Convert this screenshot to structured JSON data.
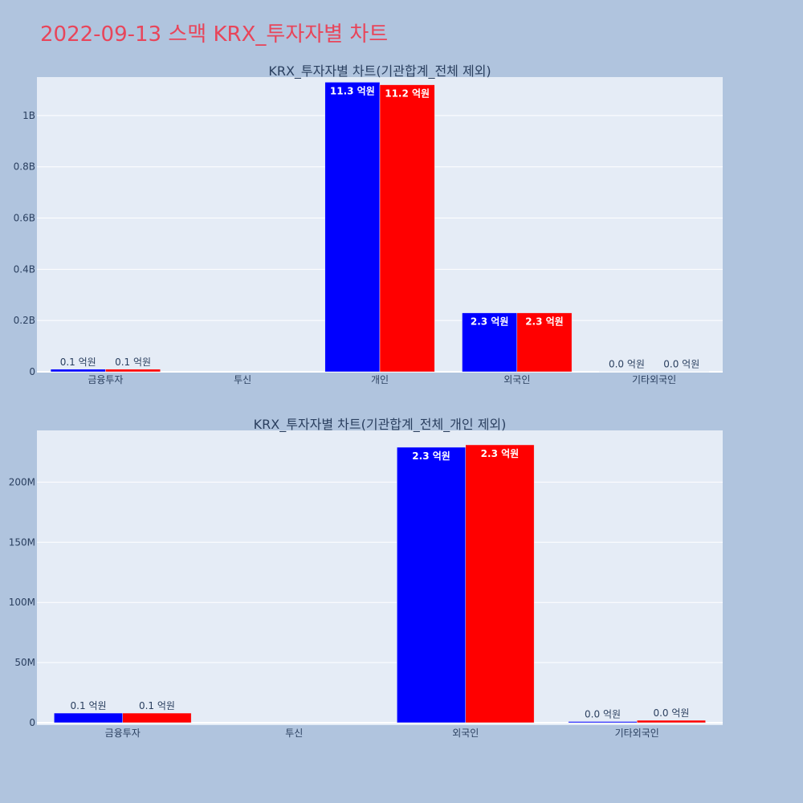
{
  "page": {
    "title": "2022-09-13 스맥 KRX_투자자별 차트"
  },
  "chart_data": [
    {
      "type": "bar",
      "title": "KRX_투자자별 차트(기관합계_전체 제외)",
      "categories": [
        "금융투자",
        "투신",
        "개인",
        "외국인",
        "기타외국인"
      ],
      "series": [
        {
          "color": "#0000ff",
          "values": [
            10000000,
            0,
            1130000000,
            230000000,
            1000000
          ],
          "labels": [
            "0.1 억원",
            "",
            "11.3 억원",
            "2.3 억원",
            "0.0 억원"
          ]
        },
        {
          "color": "#ff0000",
          "values": [
            10000000,
            0,
            1120000000,
            230000000,
            1000000
          ],
          "labels": [
            "0.1 억원",
            "",
            "11.2 억원",
            "2.3 억원",
            "0.0 억원"
          ]
        }
      ],
      "ylim": [
        0,
        1150000000
      ],
      "yticks": [
        0,
        200000000,
        400000000,
        600000000,
        800000000,
        1000000000
      ],
      "ytick_labels": [
        "0",
        "0.2B",
        "0.4B",
        "0.6B",
        "0.8B",
        "1B"
      ],
      "grid": true
    },
    {
      "type": "bar",
      "title": "KRX_투자자별 차트(기관합계_전체_개인 제외)",
      "categories": [
        "금융투자",
        "투신",
        "외국인",
        "기타외국인"
      ],
      "series": [
        {
          "color": "#0000ff",
          "values": [
            8000000,
            0,
            229000000,
            1000000
          ],
          "labels": [
            "0.1 억원",
            "",
            "2.3 억원",
            "0.0 억원"
          ]
        },
        {
          "color": "#ff0000",
          "values": [
            8000000,
            0,
            231000000,
            2000000
          ],
          "labels": [
            "0.1 억원",
            "",
            "2.3 억원",
            "0.0 억원"
          ]
        }
      ],
      "ylim": [
        -2000000,
        243000000
      ],
      "yticks": [
        0,
        50000000,
        100000000,
        150000000,
        200000000
      ],
      "ytick_labels": [
        "0",
        "50M",
        "100M",
        "150M",
        "200M"
      ],
      "grid": true
    }
  ]
}
